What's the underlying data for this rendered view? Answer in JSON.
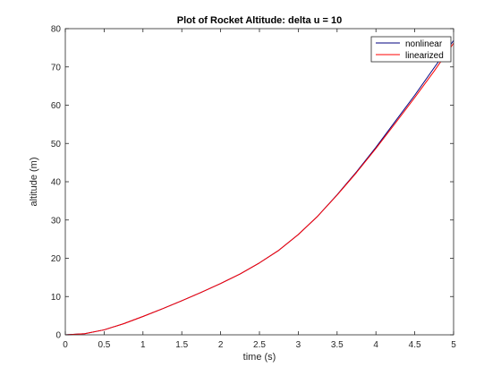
{
  "chart_data": {
    "type": "line",
    "title": "Plot of Rocket Altitude: delta u = 10",
    "xlabel": "time (s)",
    "ylabel": "altitude (m)",
    "xlim": [
      0,
      5
    ],
    "ylim": [
      0,
      80
    ],
    "xticks": [
      "0",
      "0.5",
      "1",
      "1.5",
      "2",
      "2.5",
      "3",
      "3.5",
      "4",
      "4.5",
      "5"
    ],
    "yticks": [
      "0",
      "10",
      "20",
      "30",
      "40",
      "50",
      "60",
      "70",
      "80"
    ],
    "xtick_values": [
      0,
      0.5,
      1,
      1.5,
      2,
      2.5,
      3,
      3.5,
      4,
      4.5,
      5
    ],
    "ytick_values": [
      0,
      10,
      20,
      30,
      40,
      50,
      60,
      70,
      80
    ],
    "grid": false,
    "legend_position": "top-right",
    "x": [
      0,
      0.25,
      0.5,
      0.75,
      1,
      1.25,
      1.5,
      1.75,
      2,
      2.25,
      2.5,
      2.75,
      3,
      3.25,
      3.5,
      3.75,
      4,
      4.25,
      4.5,
      4.75,
      5
    ],
    "series": [
      {
        "name": "nonlinear",
        "color": "#00007f",
        "values": [
          0,
          0.3,
          1.3,
          2.9,
          4.8,
          6.8,
          8.9,
          11.1,
          13.4,
          15.9,
          18.8,
          22.1,
          26.2,
          31.0,
          36.6,
          42.6,
          49.0,
          55.8,
          62.6,
          69.8,
          76.9
        ]
      },
      {
        "name": "linearized",
        "color": "#ff0000",
        "values": [
          0,
          0.3,
          1.3,
          2.9,
          4.8,
          6.8,
          8.9,
          11.1,
          13.4,
          15.9,
          18.8,
          22.1,
          26.2,
          31.0,
          36.5,
          42.4,
          48.7,
          55.3,
          62.0,
          68.9,
          76.2
        ]
      }
    ]
  }
}
